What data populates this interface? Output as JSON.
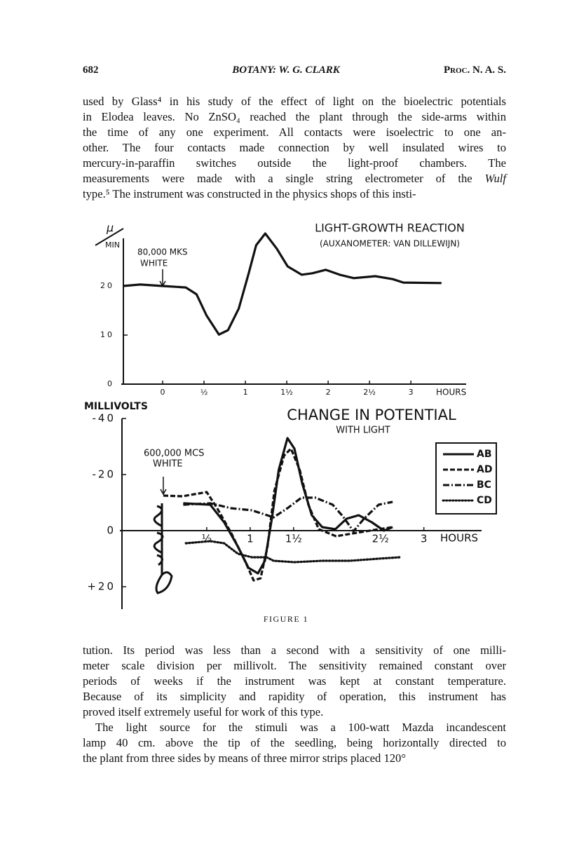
{
  "header": {
    "page": "682",
    "title": "BOTANY: W. G. CLARK",
    "journal": "Proc. N. A. S."
  },
  "paragraphs_before": [
    {
      "indent": false,
      "lines": [
        [
          "used by Glass⁴ in his study of the effect of light on the bioelectric potentials"
        ],
        [
          "in Elodea leaves. No ZnSO₄ reached the plant through the side-arms within"
        ],
        [
          "the time of any one experiment. All contacts were isoelectric to one an-"
        ],
        [
          "other. The four contacts made connection by well insulated wires to"
        ],
        [
          "mercury-in-paraffin switches outside the light-proof chambers. The"
        ],
        [
          "measurements were made with a single string electrometer of the ",
          {
            "text": "Wulf",
            "italic": true
          }
        ],
        [
          "type.⁵ The instrument was constructed in the physics shops of this insti-"
        ]
      ]
    }
  ],
  "figure": {
    "caption": "FIGURE 1"
  },
  "chart_data": [
    {
      "type": "line",
      "title": "LIGHT-GROWTH REACTION",
      "subtitle": "(AUXANOMETER: VAN DILLEWIJN)",
      "y_label_top": "µ",
      "y_label_bottom": "MIN",
      "x_label": "HOURS",
      "annotations": [
        "80,000 MKS",
        "WHITE"
      ],
      "arrow_x": 0,
      "xlim": [
        -0.5,
        3.6
      ],
      "ylim": [
        0,
        33
      ],
      "xticks": [
        0,
        {
          "value": 0.5,
          "label": "½"
        },
        1,
        {
          "value": 1.5,
          "label": "1½"
        },
        2,
        {
          "value": 2.5,
          "label": "2½"
        },
        3
      ],
      "yticks": [
        0,
        10,
        20
      ],
      "series": [
        {
          "color": "#111",
          "dash": "solid",
          "x": [
            -0.48,
            -0.27,
            0,
            0.28,
            0.41,
            0.53,
            0.68,
            0.79,
            0.92,
            1.04,
            1.13,
            1.24,
            1.38,
            1.51,
            1.68,
            1.81,
            1.97,
            2.14,
            2.31,
            2.57,
            2.78,
            2.91,
            3.37
          ],
          "values": [
            20,
            20.3,
            20,
            19.7,
            18.3,
            14,
            10.1,
            11,
            15.4,
            22.6,
            28.3,
            30.7,
            27.6,
            24,
            22.3,
            22.6,
            23.3,
            22.3,
            21.6,
            22,
            21.4,
            20.7,
            20.6
          ]
        }
      ]
    },
    {
      "type": "line",
      "title": "CHANGE IN POTENTIAL",
      "subtitle": "WITH LIGHT",
      "y_label": "MILLIVOLTS",
      "x_label": "HOURS",
      "annotations": [
        "600,000 MCS",
        "WHITE"
      ],
      "arrow_x": 0,
      "xlim": [
        -0.5,
        3.6
      ],
      "ylim": [
        -42,
        28
      ],
      "y_inverted": true,
      "xticks": [
        {
          "value": 0.5,
          "label": "½"
        },
        1,
        {
          "value": 1.5,
          "label": "1½"
        },
        {
          "value": 2.5,
          "label": "2½"
        },
        3
      ],
      "yticks": [
        -40,
        -20,
        0,
        {
          "value": 20,
          "label": "+20"
        }
      ],
      "legend": "upper right",
      "series": [
        {
          "name": "AB",
          "color": "#111",
          "dash": "solid",
          "x": [
            0.23,
            0.54,
            0.7,
            0.86,
            0.98,
            1.09,
            1.17,
            1.25,
            1.33,
            1.43,
            1.51,
            1.6,
            1.71,
            1.83,
            1.98,
            2.11,
            2.25,
            2.4,
            2.54,
            2.64
          ],
          "values": [
            -9.75,
            -9.25,
            -3,
            5.75,
            13.25,
            15.25,
            10.75,
            -4.25,
            -21.75,
            -33,
            -29.25,
            -16.75,
            -5.5,
            -1.25,
            -0.5,
            -4.25,
            -5.5,
            -3,
            0,
            -1.25
          ]
        },
        {
          "name": "AD",
          "color": "#111",
          "dash": "dashed",
          "x": [
            0,
            0.22,
            0.5,
            0.62,
            0.78,
            0.94,
            1.04,
            1.12,
            1.2,
            1.28,
            1.39,
            1.47,
            1.57,
            1.67,
            1.79,
            1.99,
            2.23,
            2.48,
            2.64
          ],
          "values": [
            -12.5,
            -12.25,
            -13.75,
            -8,
            0.75,
            10.75,
            17.75,
            17,
            5.75,
            -14.25,
            -26.75,
            -29.25,
            -21.75,
            -9.25,
            -0.5,
            2,
            0.75,
            -0.5,
            -1.25
          ]
        },
        {
          "name": "BC",
          "color": "#111",
          "dash": "dashdot",
          "x": [
            0.23,
            0.54,
            0.78,
            1.02,
            1.27,
            1.43,
            1.59,
            1.75,
            1.95,
            2.07,
            2.19,
            2.31,
            2.48,
            2.64
          ],
          "values": [
            -9.25,
            -9.75,
            -8,
            -7.25,
            -4.75,
            -8,
            -11.75,
            -11.75,
            -9.25,
            -5,
            0.25,
            -4.25,
            -9.25,
            -10.25
          ]
        },
        {
          "name": "CD",
          "color": "#111",
          "dash": "dotted",
          "x": [
            0.26,
            0.54,
            0.7,
            0.86,
            1.02,
            1.19,
            1.27,
            1.51,
            1.83,
            2.15,
            2.48,
            2.72
          ],
          "values": [
            4.5,
            3.75,
            4.5,
            8.25,
            9.5,
            9.5,
            10.75,
            11.25,
            10.75,
            10.75,
            10,
            9.5
          ]
        }
      ]
    }
  ],
  "paragraphs_after": [
    {
      "indent": false,
      "lines": [
        [
          "tution. Its period was less than a second with a sensitivity of one milli-"
        ],
        [
          "meter scale division per millivolt. The sensitivity remained constant over"
        ],
        [
          "periods of weeks if the instrument was kept at constant temperature."
        ],
        [
          "Because of its simplicity and rapidity of operation, this instrument has"
        ],
        [
          "proved itself extremely useful for work of this type."
        ]
      ]
    },
    {
      "indent": true,
      "lines": [
        [
          "The light source for the stimuli was a 100-watt Mazda incandescent"
        ],
        [
          "lamp 40 cm. above the tip of the seedling, being horizontally directed to"
        ],
        [
          "the plant from three sides by means of three mirror strips placed 120°"
        ]
      ]
    }
  ]
}
